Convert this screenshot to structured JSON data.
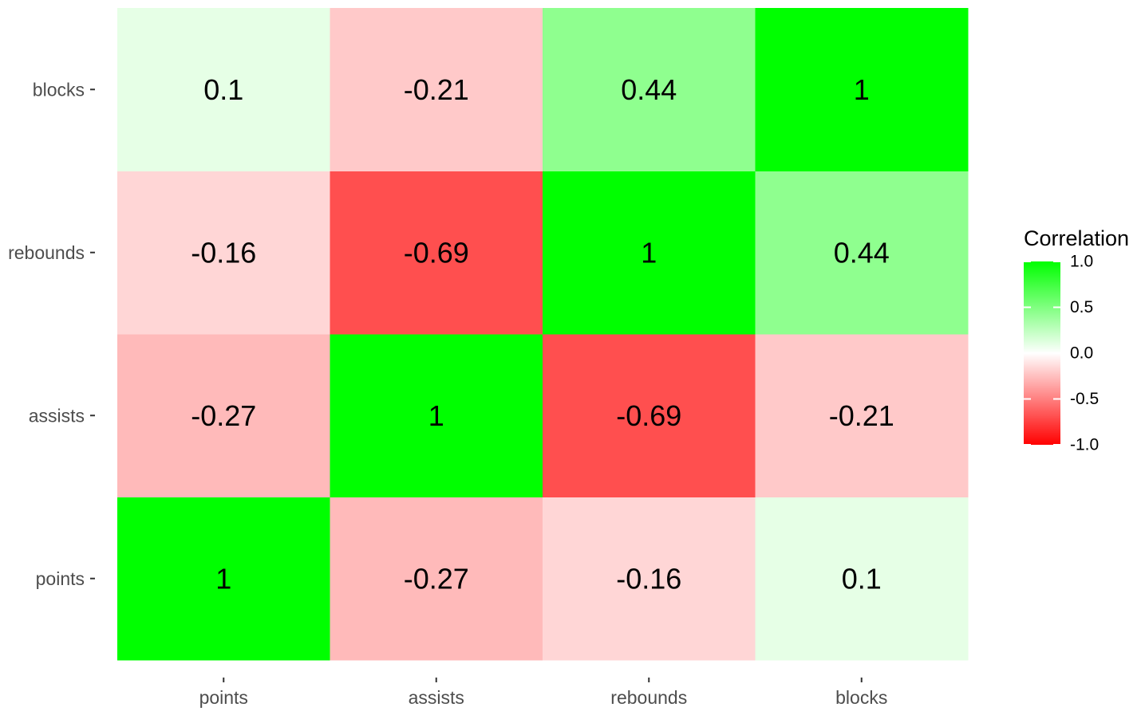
{
  "chart_data": {
    "type": "heatmap",
    "x_categories": [
      "points",
      "assists",
      "rebounds",
      "blocks"
    ],
    "y_categories": [
      "points",
      "assists",
      "rebounds",
      "blocks"
    ],
    "values": [
      [
        1,
        -0.27,
        -0.16,
        0.1
      ],
      [
        -0.27,
        1,
        -0.69,
        -0.21
      ],
      [
        -0.16,
        -0.69,
        1,
        0.44
      ],
      [
        0.1,
        -0.21,
        0.44,
        1
      ]
    ],
    "value_labels": [
      [
        "1",
        "-0.27",
        "-0.16",
        "0.1"
      ],
      [
        "-0.27",
        "1",
        "-0.69",
        "-0.21"
      ],
      [
        "-0.16",
        "-0.69",
        "1",
        "0.44"
      ],
      [
        "0.1",
        "-0.21",
        "0.44",
        "1"
      ]
    ],
    "color_scale": {
      "low": "#ff0000",
      "mid": "#ffffff",
      "high": "#00ff00",
      "limits": [
        -1,
        1
      ]
    },
    "legend": {
      "title": "Correlation",
      "ticks": [
        1.0,
        0.5,
        0.0,
        -0.5,
        -1.0
      ],
      "tick_labels": [
        "1.0",
        "0.5",
        "0.0",
        "-0.5",
        "-1.0"
      ],
      "placement": "right"
    },
    "title": "",
    "xlabel": "",
    "ylabel": "",
    "grid": false
  }
}
